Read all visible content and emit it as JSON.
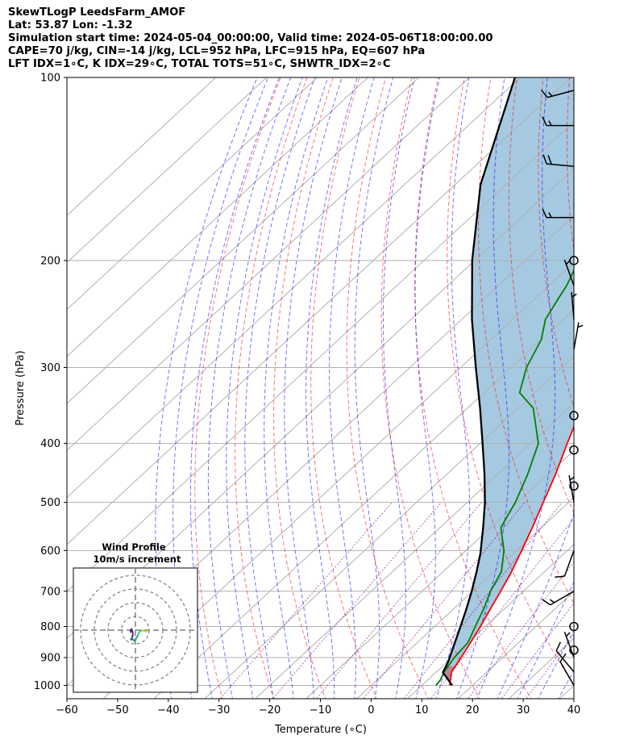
{
  "header": {
    "line1": "SkewTLogP LeedsFarm_AMOF",
    "line2": "Lat: 53.87   Lon: -1.32",
    "line3": "Simulation start time: 2024-05-04_00:00:00, Valid time: 2024-05-06T18:00:00.00",
    "line4": "CAPE=70 j/kg, CIN=-14 j/kg, LCL=952 hPa, LFC=915 hPa, EQ=607 hPa",
    "line5": "LFT IDX=1∘C, K IDX=29∘C, TOTAL TOTS=51∘C, SHWTR_IDX=2∘C"
  },
  "chart_data": {
    "type": "line",
    "subtype": "skew-T log-P",
    "xlabel": "Temperature (∘C)",
    "ylabel": "Pressure (hPa)",
    "xlim": [
      -60,
      40
    ],
    "ylim": [
      1050,
      100
    ],
    "y_scale": "log",
    "x_ticks": [
      -60,
      -50,
      -40,
      -30,
      -20,
      -10,
      0,
      10,
      20,
      30,
      40
    ],
    "y_ticks": [
      1000,
      900,
      800,
      700,
      600,
      500,
      400,
      300,
      200,
      100
    ],
    "grid": true,
    "colors": {
      "temperature": "#ff0000",
      "dewpoint": "#008000",
      "parcel": "#000000",
      "cape_fill": "#1f77b4",
      "cin_fill": "#d62728",
      "dry_adiabat": "#ff0000",
      "moist_adiabat": "#0000ff",
      "mixing_ratio": "#800080",
      "isotherm": "#808080"
    },
    "series": [
      {
        "key": "temperature",
        "pressure": [
          1000,
          950,
          900,
          850,
          800,
          750,
          700,
          650,
          600,
          550,
          500,
          450,
          400,
          350,
          300,
          270,
          250,
          230,
          220,
          200,
          170,
          140,
          120,
          100
        ],
        "values": [
          15.5,
          13.0,
          11.8,
          10.5,
          9.0,
          7.3,
          5.5,
          3.5,
          1.0,
          -1.8,
          -5.0,
          -8.5,
          -12.8,
          -17.5,
          -23.5,
          -28.8,
          -32.8,
          -35.5,
          -36.0,
          -38.5,
          -43.0,
          -47.0,
          -50.0,
          -53.0
        ]
      },
      {
        "key": "dewpoint",
        "pressure": [
          1000,
          980,
          950,
          900,
          850,
          800,
          750,
          700,
          650,
          600,
          550,
          500,
          450,
          400,
          350,
          330,
          300,
          270,
          250,
          230,
          220,
          200,
          180,
          160,
          130,
          100
        ],
        "values": [
          12.8,
          12.5,
          11.5,
          10.5,
          10.0,
          8.0,
          6.0,
          3.5,
          1.5,
          -2.5,
          -8.0,
          -10.5,
          -14.0,
          -18.5,
          -27.0,
          -33.0,
          -37.0,
          -40.0,
          -43.5,
          -45.5,
          -46.5,
          -49.5,
          -54.0,
          -61.0,
          -65.0,
          -68.0
        ]
      },
      {
        "key": "parcel",
        "pressure": [
          1000,
          952,
          915,
          850,
          800,
          750,
          700,
          650,
          607,
          550,
          500,
          450,
          400,
          350,
          300,
          250,
          200,
          150,
          100
        ],
        "values": [
          16.0,
          11.4,
          10.2,
          7.4,
          5.1,
          2.6,
          -0.2,
          -3.4,
          -6.5,
          -11.5,
          -16.5,
          -22.5,
          -29.5,
          -37.5,
          -47.0,
          -58.0,
          -70.5,
          -85.0,
          -101.0
        ]
      }
    ],
    "hodograph": {
      "title": "Wind Profile",
      "subtitle": "10m/s increment"
    },
    "wind_barbs": [
      {
        "p": 1000,
        "speed": 10,
        "dir": 330
      },
      {
        "p": 950,
        "speed": 10,
        "dir": 320
      },
      {
        "p": 900,
        "speed": 5,
        "dir": 340
      },
      {
        "p": 875,
        "speed": 0,
        "dir": 0
      },
      {
        "p": 800,
        "speed": 0,
        "dir": 0
      },
      {
        "p": 700,
        "speed": 15,
        "dir": 240
      },
      {
        "p": 600,
        "speed": 10,
        "dir": 200
      },
      {
        "p": 500,
        "speed": 5,
        "dir": 350
      },
      {
        "p": 470,
        "speed": 0,
        "dir": 0
      },
      {
        "p": 410,
        "speed": 0,
        "dir": 0
      },
      {
        "p": 360,
        "speed": 0,
        "dir": 0
      },
      {
        "p": 280,
        "speed": 5,
        "dir": 10
      },
      {
        "p": 250,
        "speed": 5,
        "dir": 355
      },
      {
        "p": 220,
        "speed": 5,
        "dir": 340
      },
      {
        "p": 200,
        "speed": 0,
        "dir": 0
      },
      {
        "p": 170,
        "speed": 15,
        "dir": 270
      },
      {
        "p": 140,
        "speed": 20,
        "dir": 275
      },
      {
        "p": 120,
        "speed": 15,
        "dir": 270
      },
      {
        "p": 105,
        "speed": 15,
        "dir": 255
      }
    ]
  }
}
